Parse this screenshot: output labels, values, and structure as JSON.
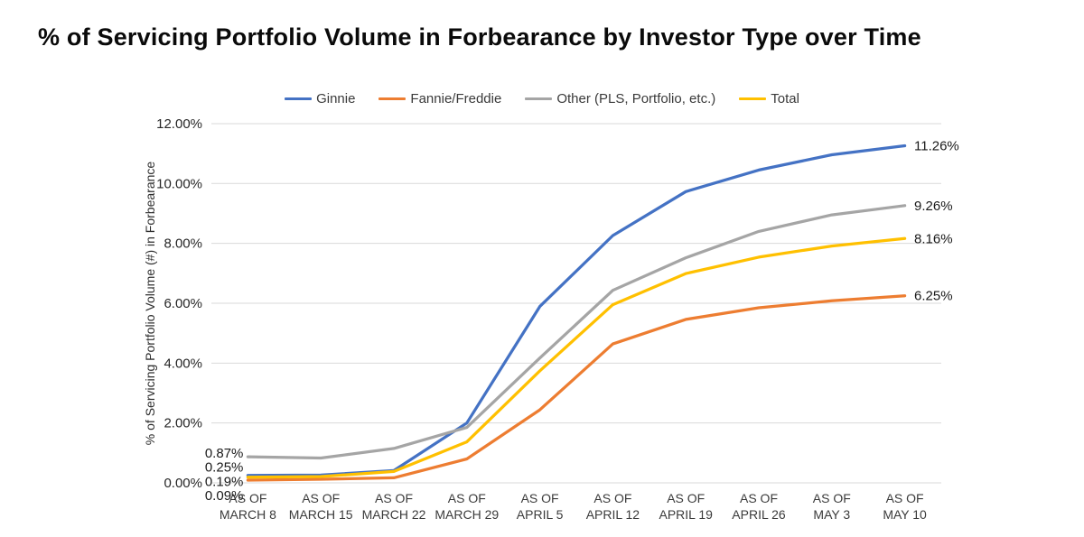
{
  "page": {
    "title": "% of Servicing Portfolio Volume in Forbearance by Investor Type over Time"
  },
  "chart_data": {
    "type": "line",
    "title": "% of Servicing Portfolio Volume in Forbearance by Investor Type over Time",
    "xlabel": "",
    "ylabel": "% of Servicing Portfolio Volume (#) in Forbearance",
    "ylim": [
      0,
      12
    ],
    "ytick_step": 2,
    "ytick_labels": [
      "0.00%",
      "2.00%",
      "4.00%",
      "6.00%",
      "8.00%",
      "10.00%",
      "12.00%"
    ],
    "grid": "horizontal-only",
    "grid_color": "#d9d9d9",
    "legend_position": "top-center",
    "category_prefix": "AS OF",
    "categories": [
      "MARCH 8",
      "MARCH 15",
      "MARCH 22",
      "MARCH 29",
      "APRIL 5",
      "APRIL 12",
      "APRIL 19",
      "APRIL 26",
      "MAY 3",
      "MAY 10"
    ],
    "series": [
      {
        "name": "Ginnie",
        "color": "#4472C4",
        "values": [
          0.25,
          0.26,
          0.41,
          2.0,
          5.89,
          8.26,
          9.73,
          10.45,
          10.96,
          11.26
        ],
        "first_label": "0.25%",
        "last_label": "11.26%"
      },
      {
        "name": "Fannie/Freddie",
        "color": "#ED7D31",
        "values": [
          0.09,
          0.12,
          0.17,
          0.8,
          2.44,
          4.64,
          5.46,
          5.85,
          6.08,
          6.25
        ],
        "first_label": "0.09%",
        "last_label": "6.25%"
      },
      {
        "name": "Other (PLS, Portfolio, etc.)",
        "color": "#A5A5A5",
        "values": [
          0.87,
          0.83,
          1.15,
          1.85,
          4.17,
          6.43,
          7.52,
          8.4,
          8.95,
          9.26
        ],
        "first_label": "0.87%",
        "last_label": "9.26%"
      },
      {
        "name": "Total",
        "color": "#FFC000",
        "values": [
          0.19,
          0.21,
          0.38,
          1.37,
          3.74,
          5.95,
          6.99,
          7.54,
          7.91,
          8.16
        ],
        "first_label": "0.19%",
        "last_label": "8.16%"
      }
    ]
  }
}
